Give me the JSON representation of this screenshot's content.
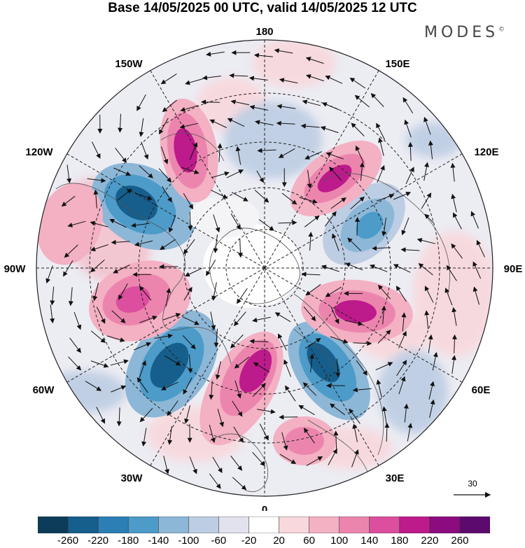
{
  "title": "Base 14/05/2025 00 UTC, valid 14/05/2025 12 UTC",
  "brand": "MODES",
  "brand_mark": "©",
  "longitude_labels": {
    "top": "180",
    "bottom": "0",
    "left": "90W",
    "right": "90E",
    "upper_left_1": "150W",
    "upper_left_2": "120W",
    "lower_left_1": "60W",
    "lower_left_2": "30W",
    "upper_right_1": "150E",
    "upper_right_2": "120E",
    "lower_right_1": "60E",
    "lower_right_2": "30E"
  },
  "vector_reference": {
    "label": "30"
  },
  "colorbar": {
    "labels": [
      "-260",
      "-220",
      "-180",
      "-140",
      "-100",
      "-60",
      "-20",
      "20",
      "60",
      "100",
      "140",
      "180",
      "220",
      "260"
    ],
    "colors": [
      "#0c3c5a",
      "#165e8c",
      "#2b7fb5",
      "#4c9bc9",
      "#8db7d7",
      "#bdcde3",
      "#e2e2ef",
      "#ffffff",
      "#f8d8dc",
      "#f3b1c3",
      "#ec85ae",
      "#dc4f9e",
      "#bd1a8b",
      "#8c0b7f",
      "#5c0a6d"
    ]
  },
  "map": {
    "type": "north-polar-stereographic",
    "field_colors": {
      "ocean_background": "#ffffff",
      "coast": "#555555",
      "arrow": "#111111",
      "grid": "#333333"
    }
  }
}
